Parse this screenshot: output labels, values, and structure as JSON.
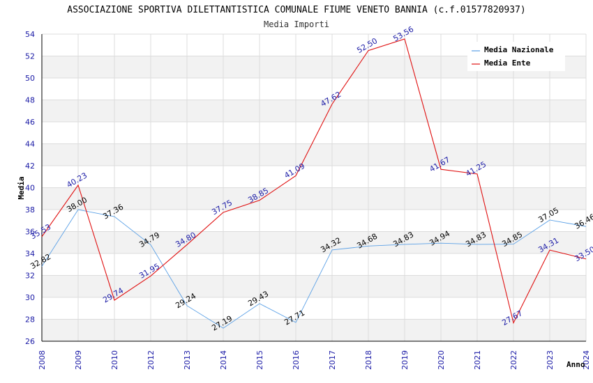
{
  "chart_data": {
    "type": "line",
    "title": "ASSOCIAZIONE SPORTIVA DILETTANTISTICA COMUNALE FIUME VENETO BANNIA (c.f.01577820937)",
    "subtitle": "Media Importi",
    "xlabel": "Anno",
    "ylabel": "Media",
    "categories": [
      "2008",
      "2009",
      "2010",
      "2012",
      "2013",
      "2014",
      "2015",
      "2016",
      "2017",
      "2018",
      "2019",
      "2020",
      "2021",
      "2022",
      "2023",
      "2024"
    ],
    "ylim": [
      26,
      54
    ],
    "yticks": [
      "26",
      "28",
      "30",
      "32",
      "34",
      "36",
      "38",
      "40",
      "42",
      "44",
      "46",
      "48",
      "50",
      "52",
      "54"
    ],
    "legend_position": "top-right",
    "series": [
      {
        "name": "Media Nazionale",
        "color": "#5aa0e6",
        "values": [
          32.82,
          38.0,
          37.36,
          34.79,
          29.24,
          27.19,
          29.43,
          27.71,
          34.32,
          34.68,
          34.83,
          34.94,
          34.83,
          34.85,
          37.05,
          36.46
        ],
        "labels": [
          "32.82",
          "38.00",
          "37.36",
          "34.79",
          "29.24",
          "27.19",
          "29.43",
          "27.71",
          "34.32",
          "34.68",
          "34.83",
          "34.94",
          "34.83",
          "34.85",
          "37.05",
          "36.46"
        ]
      },
      {
        "name": "Media Ente",
        "color": "#e01010",
        "values": [
          35.53,
          40.23,
          29.74,
          31.95,
          34.8,
          37.75,
          38.85,
          41.09,
          47.62,
          52.5,
          53.56,
          41.67,
          41.25,
          27.67,
          34.31,
          33.5
        ],
        "labels": [
          "35.53",
          "40.23",
          "29.74",
          "31.95",
          "34.80",
          "37.75",
          "38.85",
          "41.09",
          "47.62",
          "52.50",
          "53.56",
          "41.67",
          "41.25",
          "27.67",
          "34.31",
          "33.50"
        ]
      }
    ]
  }
}
